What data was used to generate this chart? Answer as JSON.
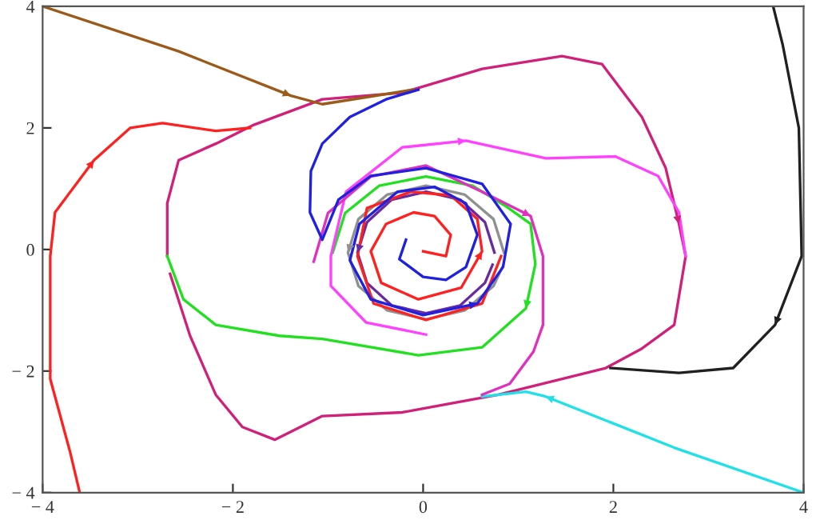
{
  "chart_data": {
    "type": "line",
    "xlim": [
      -4,
      4
    ],
    "ylim": [
      -4,
      4
    ],
    "xticks": [
      {
        "value": -4,
        "label": "− 4"
      },
      {
        "value": -2,
        "label": "− 2"
      },
      0,
      2,
      4
    ],
    "yticks": [
      {
        "value": -4,
        "label": "− 4"
      },
      {
        "value": -2,
        "label": "− 2"
      },
      0,
      2,
      4
    ],
    "grid": false,
    "legend": false,
    "marker": "none",
    "line_style": "solid",
    "series": [
      {
        "color": "#d0207a",
        "x": [
          -2.69,
          -2.69,
          -2.57,
          -2.18,
          -1.78,
          -1.06,
          -0.22,
          0.62,
          1.46,
          1.88,
          2.3,
          2.55,
          2.69,
          2.76,
          2.64,
          2.3,
          1.92,
          0.79,
          -0.22,
          -1.06,
          -1.56,
          -1.9,
          -2.18,
          -2.45,
          -2.66
        ],
        "values": [
          -0.11,
          0.76,
          1.47,
          1.74,
          2.05,
          2.47,
          2.58,
          2.97,
          3.18,
          3.05,
          2.18,
          1.34,
          0.42,
          -0.11,
          -1.24,
          -1.63,
          -1.95,
          -2.39,
          -2.68,
          -2.74,
          -3.13,
          -2.92,
          -2.39,
          -1.42,
          -0.4
        ]
      },
      {
        "color": "#9b5a1a",
        "x": [
          -4,
          -2.57,
          -1.39,
          -1.06,
          -0.1
        ],
        "values": [
          4,
          3.26,
          2.53,
          2.39,
          2.63
        ]
      },
      {
        "color": "#ff2020",
        "x": [
          -3.61,
          -3.71,
          -3.92,
          -3.92,
          -3.87,
          -3.46,
          -3.08,
          -2.74,
          -2.18,
          -1.82
        ],
        "values": [
          -4,
          -3.34,
          -2.13,
          -0.11,
          0.61,
          1.47,
          2.0,
          2.08,
          1.95,
          2.0
        ]
      },
      {
        "color": "#202020",
        "x": [
          3.68,
          3.78,
          3.95,
          3.98,
          3.7,
          3.26,
          2.69,
          1.97
        ],
        "values": [
          4,
          3.37,
          2.0,
          -0.11,
          -1.24,
          -1.95,
          -2.03,
          -1.95
        ]
      },
      {
        "color": "#20e0e8",
        "x": [
          4,
          2.64,
          1.29,
          1.08,
          0.62
        ],
        "values": [
          -4,
          -3.26,
          -2.42,
          -2.34,
          -2.42
        ]
      },
      {
        "color": "#6a2aa0",
        "x": [
          0.75,
          0.65,
          0.39,
          0.03,
          -0.33,
          -0.59,
          -0.69,
          -0.59,
          -0.33,
          0.03,
          0.39,
          0.65,
          0.73
        ],
        "values": [
          -0.05,
          0.45,
          0.82,
          0.95,
          0.82,
          0.45,
          -0.05,
          -0.55,
          -0.92,
          -1.05,
          -0.92,
          -0.55,
          -0.25
        ]
      },
      {
        "color": "#909090",
        "x": [
          0.85,
          0.74,
          0.44,
          0.03,
          -0.38,
          -0.68,
          -0.79,
          -0.68,
          -0.38,
          0.03,
          0.44,
          0.74,
          0.83
        ],
        "values": [
          -0.05,
          0.5,
          0.9,
          1.05,
          0.9,
          0.5,
          -0.05,
          -0.6,
          -1.0,
          -1.15,
          -1.0,
          -0.6,
          -0.3
        ]
      },
      {
        "color": "#20e020",
        "x": [
          -0.95,
          -0.82,
          -0.46,
          0.03,
          0.52,
          0.88,
          1.13,
          1.18,
          1.08,
          0.62,
          -0.05,
          -1.06,
          -1.51,
          -2.18,
          -2.52,
          -2.69
        ],
        "values": [
          -0.05,
          0.6,
          1.05,
          1.2,
          1.05,
          0.7,
          0.42,
          -0.24,
          -0.97,
          -1.61,
          -1.74,
          -1.47,
          -1.42,
          -1.24,
          -0.82,
          -0.11
        ]
      },
      {
        "color": "#ff40ff",
        "x": [
          0.03,
          -0.6,
          -0.97,
          -0.97,
          -0.81,
          -0.22,
          0.45,
          1.29,
          2.02,
          2.47,
          2.69,
          2.76
        ],
        "values": [
          -1.4,
          -1.2,
          -0.6,
          -0.11,
          0.95,
          1.68,
          1.79,
          1.5,
          1.53,
          1.21,
          0.61,
          -0.11
        ]
      },
      {
        "color": "#e030c0",
        "x": [
          -1.15,
          -1.0,
          -0.55,
          0.03,
          0.62,
          1.13,
          1.26,
          1.26,
          1.16,
          0.91,
          0.62
        ],
        "values": [
          -0.2,
          0.6,
          1.2,
          1.38,
          0.95,
          0.55,
          -0.11,
          -1.24,
          -1.68,
          -2.21,
          -2.39
        ]
      },
      {
        "color": "#ff2020",
        "x": [
          0.0,
          0.24,
          0.29,
          0.12,
          -0.1,
          -0.39,
          -0.55,
          -0.44,
          -0.05,
          0.4,
          0.62,
          0.57,
          0.29,
          -0.13,
          -0.59,
          -0.69,
          -0.52,
          0.03,
          0.62,
          0.82
        ],
        "values": [
          -0.03,
          -0.11,
          0.24,
          0.55,
          0.61,
          0.42,
          -0.03,
          -0.55,
          -0.82,
          -0.63,
          -0.03,
          0.5,
          0.89,
          0.95,
          0.68,
          -0.11,
          -0.89,
          -1.16,
          -0.89,
          -0.11
        ]
      },
      {
        "color": "#2020e0",
        "x": [
          -0.18,
          -0.25,
          0,
          0.24,
          0.45,
          0.57,
          0.45,
          0.12,
          -0.27,
          -0.67,
          -0.77,
          -0.55,
          0,
          0.57,
          0.84,
          0.92,
          0.62,
          0.03,
          -0.55,
          -0.89,
          -1.06,
          -1.19,
          -1.18,
          -1.06,
          -0.77,
          -0.39,
          -0.05
        ],
        "values": [
          0.16,
          -0.16,
          -0.45,
          -0.5,
          -0.29,
          0.24,
          0.76,
          1.03,
          0.95,
          0.42,
          -0.18,
          -0.82,
          -1.08,
          -0.89,
          -0.29,
          0.42,
          1.08,
          1.34,
          1.21,
          0.82,
          0.16,
          0.61,
          1.29,
          1.74,
          2.18,
          2.47,
          2.63
        ]
      }
    ]
  }
}
